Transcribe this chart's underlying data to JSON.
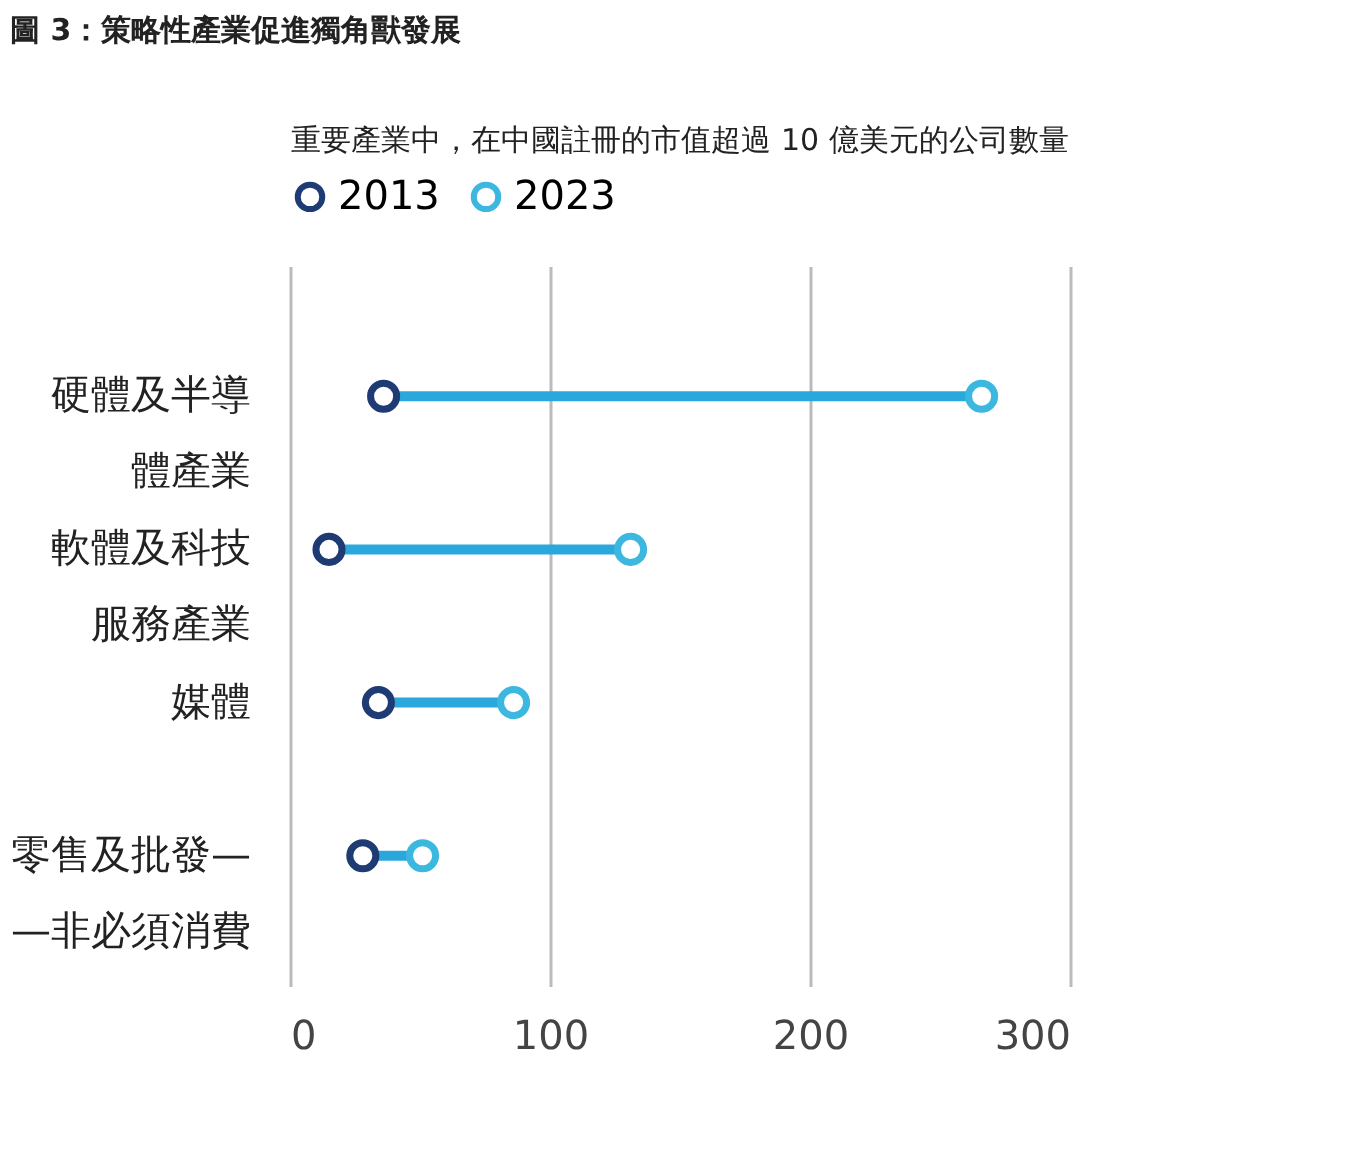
{
  "chart_data": {
    "type": "scatter",
    "orientation": "horizontal",
    "title": "圖 3：策略性產業促進獨角獸發展",
    "subtitle": "重要產業中，在中國註冊的市值超過 10 億美元的公司數量",
    "categories": [
      "硬體及半導體產業",
      "軟體及科技服務產業",
      "媒體",
      "零售及批發——非必須消費"
    ],
    "series": [
      {
        "name": "2013",
        "color": "#1f3b73",
        "values": [
          36,
          15,
          34,
          28
        ]
      },
      {
        "name": "2023",
        "color": "#3cb8e0",
        "values": [
          266,
          131,
          86,
          51
        ]
      }
    ],
    "xlim": [
      0,
      300
    ],
    "xticks": [
      0,
      100,
      200,
      300
    ],
    "grid": "x",
    "legend": "top",
    "marker": "circle"
  }
}
